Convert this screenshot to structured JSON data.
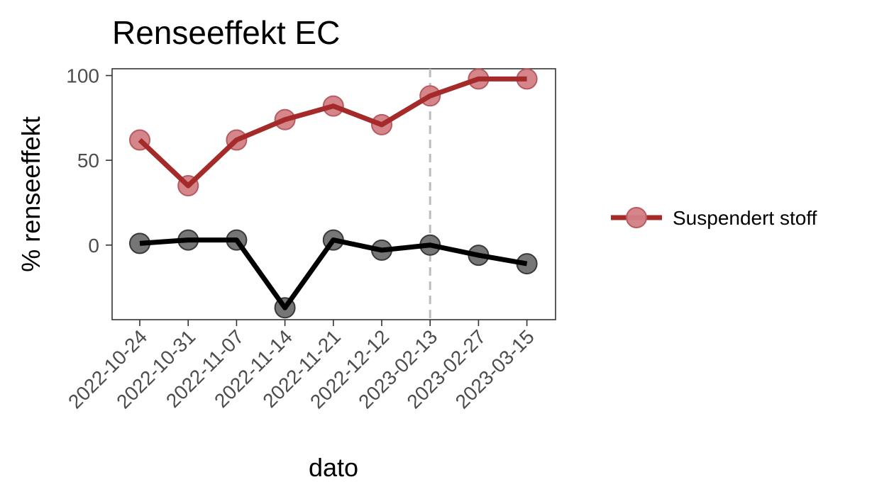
{
  "chart_data": {
    "type": "line",
    "title": "Renseeffekt EC",
    "xlabel": "dato",
    "ylabel": "% renseeffekt",
    "categories": [
      "2022-10-24",
      "2022-10-31",
      "2022-11-07",
      "2022-11-14",
      "2022-11-21",
      "2022-12-12",
      "2023-02-13",
      "2023-02-27",
      "2023-03-15"
    ],
    "y_ticks": [
      0,
      50,
      100
    ],
    "ylim": [
      -44,
      104
    ],
    "vline_category": "2023-02-13",
    "grid": false,
    "legend_position": "right",
    "series": [
      {
        "name": "Suspendert stoff",
        "color": "#a52a2a",
        "point_color": "#d27f84",
        "in_legend": true,
        "values": [
          62,
          35,
          62,
          74,
          82,
          71,
          88,
          98,
          98
        ]
      },
      {
        "color": "#000000",
        "point_color": "#6f6f6f",
        "in_legend": false,
        "values": [
          1,
          3,
          3,
          -37,
          3,
          -3,
          0,
          -6,
          -11
        ]
      }
    ]
  }
}
